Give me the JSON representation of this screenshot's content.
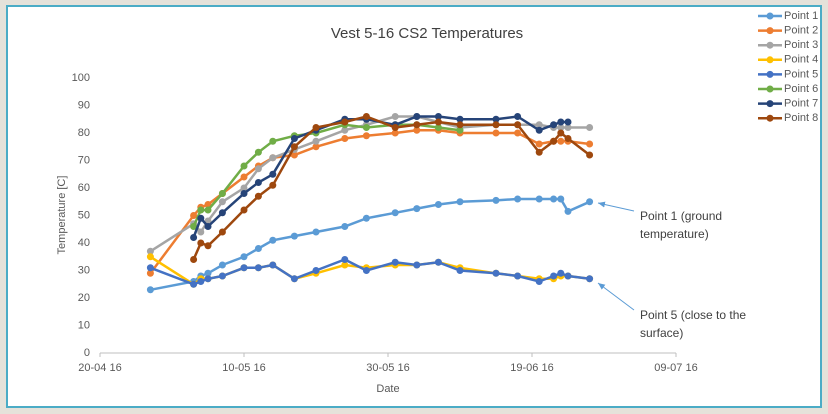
{
  "chart_data": {
    "type": "line",
    "title": "Vest 5-16 CS2  Temperatures",
    "x_label": "Date",
    "y_label": "Temperature [C]",
    "x": [
      "2016-04-27",
      "2016-05-03",
      "2016-05-04",
      "2016-05-05",
      "2016-05-07",
      "2016-05-10",
      "2016-05-12",
      "2016-05-14",
      "2016-05-17",
      "2016-05-20",
      "2016-05-24",
      "2016-05-27",
      "2016-05-31",
      "2016-06-03",
      "2016-06-06",
      "2016-06-09",
      "2016-06-14",
      "2016-06-17",
      "2016-06-20",
      "2016-06-22",
      "2016-06-23",
      "2016-06-24",
      "2016-06-27"
    ],
    "xlim": [
      "2016-04-20",
      "2016-07-09"
    ],
    "xticks": [
      {
        "value": "2016-04-20",
        "label": "20-04 16"
      },
      {
        "value": "2016-05-10",
        "label": "10-05 16"
      },
      {
        "value": "2016-05-30",
        "label": "30-05 16"
      },
      {
        "value": "2016-06-19",
        "label": "19-06 16"
      },
      {
        "value": "2016-07-09",
        "label": "09-07 16"
      }
    ],
    "ylim": [
      0,
      100
    ],
    "yticks": [
      0,
      10,
      20,
      30,
      40,
      50,
      60,
      70,
      80,
      90,
      100
    ],
    "grid": false,
    "legend": "right",
    "series": [
      {
        "name": "Point 1",
        "color": "#5b9bd5",
        "values": [
          23,
          26,
          28,
          29,
          32,
          35,
          38,
          41,
          42.5,
          44,
          46,
          49,
          51,
          52.5,
          54,
          55,
          55.5,
          56,
          56,
          56,
          56,
          51.5,
          55
        ]
      },
      {
        "name": "Point 2",
        "color": "#ed7d31",
        "values": [
          29,
          50,
          53,
          54,
          58,
          64,
          68,
          71,
          72,
          75,
          78,
          79,
          80,
          81,
          81,
          80,
          80,
          80,
          76,
          77,
          77,
          77,
          76
        ]
      },
      {
        "name": "Point 3",
        "color": "#a5a5a5",
        "values": [
          37,
          47,
          44,
          48,
          55,
          60,
          67,
          71,
          74,
          77,
          81,
          83,
          86,
          86,
          84,
          82,
          83,
          83,
          83,
          82,
          82,
          82,
          82
        ]
      },
      {
        "name": "Point 4",
        "color": "#ffc000",
        "values": [
          35,
          25,
          27,
          27,
          28,
          31,
          31,
          32,
          27,
          29,
          32,
          31,
          32,
          32,
          33,
          31,
          29,
          28,
          27,
          27,
          28,
          28,
          27
        ]
      },
      {
        "name": "Point 5",
        "color": "#4472c4",
        "values": [
          31,
          25,
          26,
          27,
          28,
          31,
          31,
          32,
          27,
          30,
          34,
          30,
          33,
          32,
          33,
          30,
          29,
          28,
          26,
          28,
          29,
          28,
          27
        ]
      },
      {
        "name": "Point 6",
        "color": "#70ad47",
        "values": [
          null,
          46,
          52,
          52,
          58,
          68,
          73,
          77,
          79,
          80,
          83,
          82,
          83,
          83,
          82,
          81,
          null,
          null,
          null,
          null,
          null,
          null,
          null
        ]
      },
      {
        "name": "Point 7",
        "color": "#264478",
        "values": [
          null,
          42,
          49,
          46,
          51,
          58,
          62,
          65,
          78,
          81,
          85,
          85,
          83,
          86,
          86,
          85,
          85,
          86,
          81,
          83,
          84,
          84,
          null
        ]
      },
      {
        "name": "Point 8",
        "color": "#9e480e",
        "values": [
          null,
          34,
          40,
          39,
          44,
          52,
          57,
          61,
          75,
          82,
          84,
          86,
          82,
          83,
          84,
          83,
          83,
          83,
          73,
          77,
          80,
          78,
          72
        ]
      }
    ],
    "annotations": [
      {
        "text": [
          "Point 1 (ground",
          "temperature)"
        ]
      },
      {
        "text": [
          "Point 5 (close to the",
          "surface)"
        ]
      }
    ]
  }
}
